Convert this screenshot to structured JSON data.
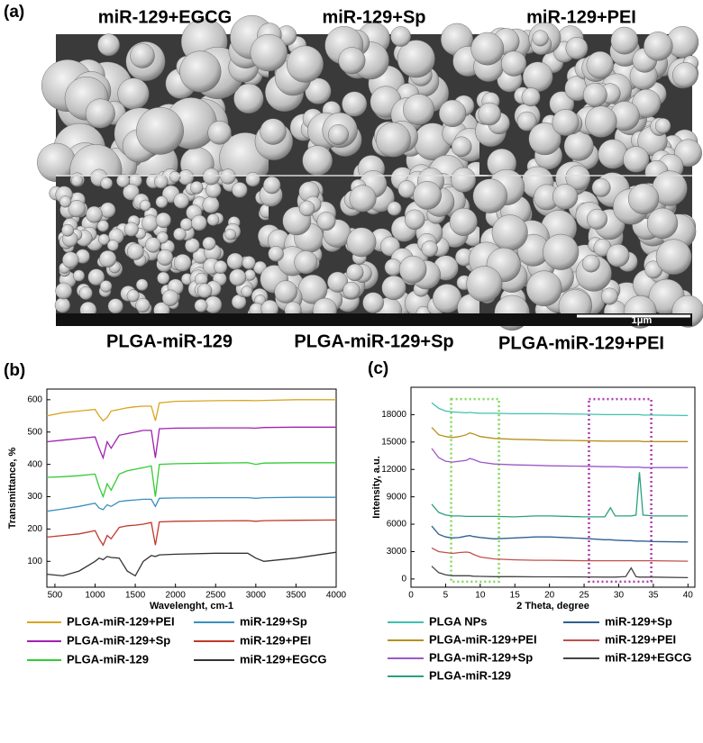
{
  "panel_a": {
    "label": "(a)",
    "top_labels": [
      "miR-129+EGCG",
      "miR-129+Sp",
      "miR-129+PEI"
    ],
    "bottom_labels": [
      "PLGA-miR-129",
      "PLGA-miR-129+Sp",
      "PLGA-miR-129+PEI"
    ],
    "scale_bar": "1μm"
  },
  "chart_data": [
    {
      "type": "line",
      "panel_label": "(b)",
      "x_label": "Wavelenght, cm-1",
      "y_label": "Transmittance, %",
      "x": [
        400,
        600,
        800,
        1000,
        1050,
        1100,
        1150,
        1200,
        1300,
        1400,
        1500,
        1600,
        1700,
        1750,
        1800,
        2000,
        2500,
        2900,
        3000,
        3100,
        3500,
        4000
      ],
      "xlim": [
        400,
        4000
      ],
      "xticks": [
        500,
        1000,
        1500,
        2000,
        2500,
        3000,
        3500,
        4000
      ],
      "ylim": [
        20,
        633
      ],
      "yticks": [
        100,
        200,
        300,
        400,
        500,
        600
      ],
      "series": [
        {
          "name": "PLGA-miR-129+PEI",
          "color": "#d9a520",
          "values": [
            550,
            560,
            565,
            570,
            550,
            535,
            545,
            565,
            570,
            575,
            578,
            580,
            580,
            535,
            590,
            595,
            597,
            598,
            597,
            598,
            600,
            600
          ]
        },
        {
          "name": "miR-129+Sp",
          "color": "#3a8fbf",
          "values": [
            255,
            262,
            270,
            280,
            265,
            260,
            275,
            270,
            285,
            288,
            290,
            292,
            292,
            270,
            295,
            296,
            297,
            297,
            295,
            297,
            298,
            298
          ]
        },
        {
          "name": "PLGA-miR-129+Sp",
          "color": "#a020b0",
          "values": [
            470,
            475,
            480,
            485,
            450,
            420,
            470,
            450,
            490,
            495,
            500,
            505,
            505,
            420,
            510,
            512,
            513,
            513,
            512,
            514,
            515,
            515
          ]
        },
        {
          "name": "miR-129+PEI",
          "color": "#c0392b",
          "values": [
            175,
            180,
            185,
            195,
            170,
            150,
            180,
            170,
            205,
            210,
            212,
            215,
            220,
            150,
            222,
            224,
            225,
            226,
            224,
            226,
            227,
            228
          ]
        },
        {
          "name": "PLGA-miR-129",
          "color": "#33cc33",
          "values": [
            360,
            362,
            365,
            370,
            330,
            300,
            340,
            320,
            370,
            380,
            385,
            390,
            395,
            300,
            400,
            402,
            404,
            405,
            400,
            404,
            405,
            405
          ]
        },
        {
          "name": "miR-129+EGCG",
          "color": "#333333",
          "values": [
            60,
            55,
            70,
            100,
            110,
            105,
            115,
            112,
            110,
            70,
            55,
            100,
            118,
            115,
            120,
            122,
            125,
            125,
            110,
            100,
            110,
            128
          ]
        }
      ]
    },
    {
      "type": "line",
      "panel_label": "(c)",
      "x_label": "2 Theta, degree",
      "y_label": "Intensity, a.u.",
      "x": [
        3,
        4,
        5,
        6,
        7,
        8,
        8.5,
        9,
        10,
        12,
        15,
        18,
        20,
        25,
        28,
        28.8,
        29.5,
        31,
        31.8,
        32.5,
        33,
        33.5,
        35,
        40
      ],
      "xlim": [
        0,
        41
      ],
      "xticks": [
        0,
        5,
        10,
        15,
        20,
        25,
        30,
        35,
        40
      ],
      "ylim": [
        -900,
        21000
      ],
      "yticks": [
        0,
        3000,
        6000,
        9000,
        12000,
        15000,
        18000
      ],
      "regions": [
        {
          "x": [
            5.8,
            12.7
          ],
          "y": [
            -300,
            19700
          ],
          "color": "#7ed957"
        },
        {
          "x": [
            25.7,
            34.7
          ],
          "y": [
            -300,
            19700
          ],
          "color": "#b03cb0"
        }
      ],
      "series": [
        {
          "name": "PLGA NPs",
          "color": "#40c0b0",
          "values": [
            19300,
            18700,
            18400,
            18300,
            18250,
            18200,
            18250,
            18200,
            18150,
            18150,
            18100,
            18100,
            18100,
            18050,
            18000,
            18000,
            18000,
            18000,
            18000,
            18000,
            18000,
            17950,
            17950,
            17900
          ]
        },
        {
          "name": "PLGA-miR-129+PEI",
          "color": "#b8901c",
          "values": [
            16600,
            15800,
            15600,
            15500,
            15600,
            15800,
            16000,
            15900,
            15600,
            15400,
            15300,
            15250,
            15200,
            15150,
            15100,
            15100,
            15100,
            15100,
            15100,
            15100,
            15100,
            15050,
            15050,
            15050
          ]
        },
        {
          "name": "PLGA-miR-129+Sp",
          "color": "#9b59c6",
          "values": [
            14300,
            13300,
            12900,
            12800,
            12900,
            13000,
            13200,
            13100,
            12800,
            12600,
            12500,
            12450,
            12400,
            12350,
            12300,
            12300,
            12300,
            12250,
            12250,
            12250,
            12250,
            12200,
            12200,
            12200
          ]
        },
        {
          "name": "PLGA-miR-129",
          "color": "#2aa080",
          "values": [
            8200,
            7300,
            7000,
            6900,
            6900,
            6850,
            6850,
            6850,
            6850,
            6850,
            6800,
            6900,
            6900,
            6800,
            6800,
            7800,
            6900,
            6900,
            6900,
            7000,
            11700,
            7000,
            6900,
            6900
          ]
        },
        {
          "name": "miR-129+Sp",
          "color": "#2f5f8f",
          "values": [
            5800,
            4900,
            4600,
            4500,
            4550,
            4700,
            4750,
            4650,
            4550,
            4400,
            4500,
            4600,
            4600,
            4450,
            4300,
            4300,
            4250,
            4200,
            4200,
            4150,
            4150,
            4150,
            4100,
            4050
          ]
        },
        {
          "name": "miR-129+PEI",
          "color": "#c0504d",
          "values": [
            3400,
            3000,
            2900,
            2800,
            2900,
            2950,
            2900,
            2700,
            2400,
            2200,
            2100,
            2050,
            2050,
            2000,
            2000,
            2000,
            2000,
            2000,
            2000,
            2000,
            2000,
            2000,
            2000,
            1950
          ]
        },
        {
          "name": "miR-129+EGCG",
          "color": "#444444",
          "values": [
            1400,
            700,
            450,
            350,
            350,
            350,
            350,
            300,
            280,
            250,
            250,
            230,
            230,
            220,
            200,
            200,
            200,
            250,
            1200,
            250,
            200,
            200,
            200,
            150
          ]
        }
      ]
    }
  ]
}
